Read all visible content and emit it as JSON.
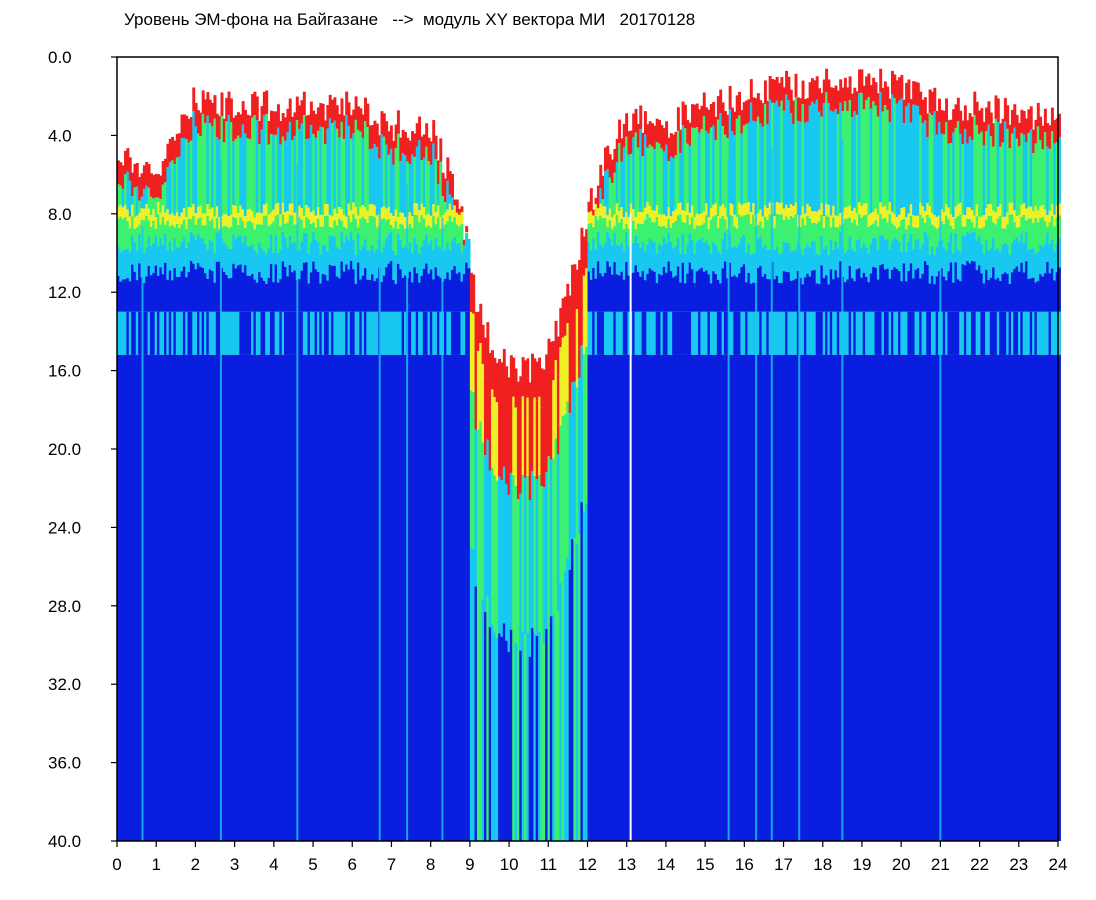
{
  "chart_data": {
    "type": "heatmap",
    "title": "Уровень ЭМ-фона на Байгазане   -->  модуль XY вектора МИ   20170128",
    "xlabel": "",
    "ylabel": "",
    "x_ticks": [
      "0",
      "1",
      "2",
      "3",
      "4",
      "5",
      "6",
      "7",
      "8",
      "9",
      "10",
      "11",
      "12",
      "13",
      "14",
      "15",
      "16",
      "17",
      "18",
      "19",
      "20",
      "21",
      "22",
      "23",
      "24"
    ],
    "y_ticks": [
      "0.0",
      "4.0",
      "8.0",
      "12.0",
      "16.0",
      "20.0",
      "24.0",
      "28.0",
      "32.0",
      "36.0",
      "40.0"
    ],
    "xlim": [
      0,
      24
    ],
    "ylim": [
      0,
      40
    ],
    "y_inverted": true,
    "grid": false,
    "colors": {
      "background": "#0a1ee0",
      "low": "#0a1ee0",
      "mid_low": "#18c8f0",
      "mid": "#3cf070",
      "mid_high": "#f0f028",
      "high": "#f02020",
      "empty": "#ffffff"
    },
    "signal_top_profile": {
      "hours": [
        0,
        0.5,
        1,
        1.5,
        2,
        3,
        4,
        5,
        6,
        7,
        8,
        8.8,
        9.2,
        9.6,
        10,
        10.5,
        11,
        11.5,
        12,
        12.5,
        13,
        14,
        15,
        16,
        17,
        18,
        19,
        20,
        21,
        22,
        23,
        24
      ],
      "top_level": [
        5,
        5.5,
        6,
        4,
        2,
        2.5,
        2.5,
        2.5,
        2.5,
        3.5,
        3.5,
        8,
        13,
        15,
        16,
        16,
        15,
        12,
        8,
        5,
        3,
        3.5,
        2.5,
        2,
        1.5,
        1.3,
        1,
        1.5,
        2.5,
        2.5,
        3,
        3
      ]
    },
    "band_levels": {
      "red_to_green_edge": 7.8,
      "green_to_blue_edge": 9.5,
      "secondary_green_band": 14
    }
  }
}
